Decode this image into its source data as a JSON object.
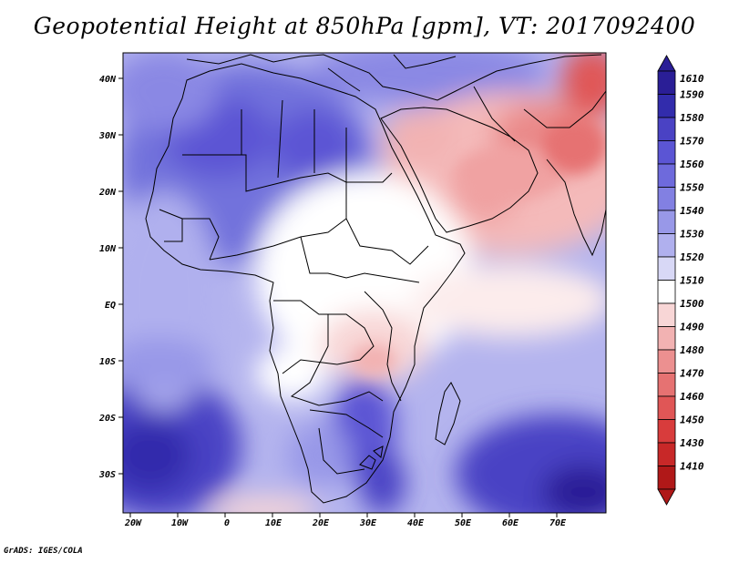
{
  "title": "Geopotential Height at 850hPa [gpm], VT: 2017092400",
  "credit": "GrADS: IGES/COLA",
  "map": {
    "lon_labels": [
      "20W",
      "10W",
      "0",
      "10E",
      "20E",
      "30E",
      "40E",
      "50E",
      "60E",
      "70E"
    ],
    "lat_labels": [
      "40N",
      "30N",
      "20N",
      "10N",
      "EQ",
      "10S",
      "20S",
      "30S"
    ],
    "lon_range": [
      -22,
      80
    ],
    "lat_range": [
      -37,
      45
    ]
  },
  "colorbar": {
    "levels": [
      "1610",
      "1590",
      "1580",
      "1570",
      "1560",
      "1550",
      "1540",
      "1530",
      "1520",
      "1510",
      "1500",
      "1490",
      "1480",
      "1470",
      "1460",
      "1450",
      "1430",
      "1410"
    ],
    "colors": [
      "#2a1e96",
      "#322cac",
      "#4a42c4",
      "#5b55d4",
      "#6e6adc",
      "#8280e2",
      "#9898e8",
      "#b0b0ee",
      "#d8d8f6",
      "#ffffff",
      "#f8d6d6",
      "#f2b2b2",
      "#ec9090",
      "#e67272",
      "#e05656",
      "#d83c3c",
      "#c82828",
      "#b01818"
    ]
  }
}
